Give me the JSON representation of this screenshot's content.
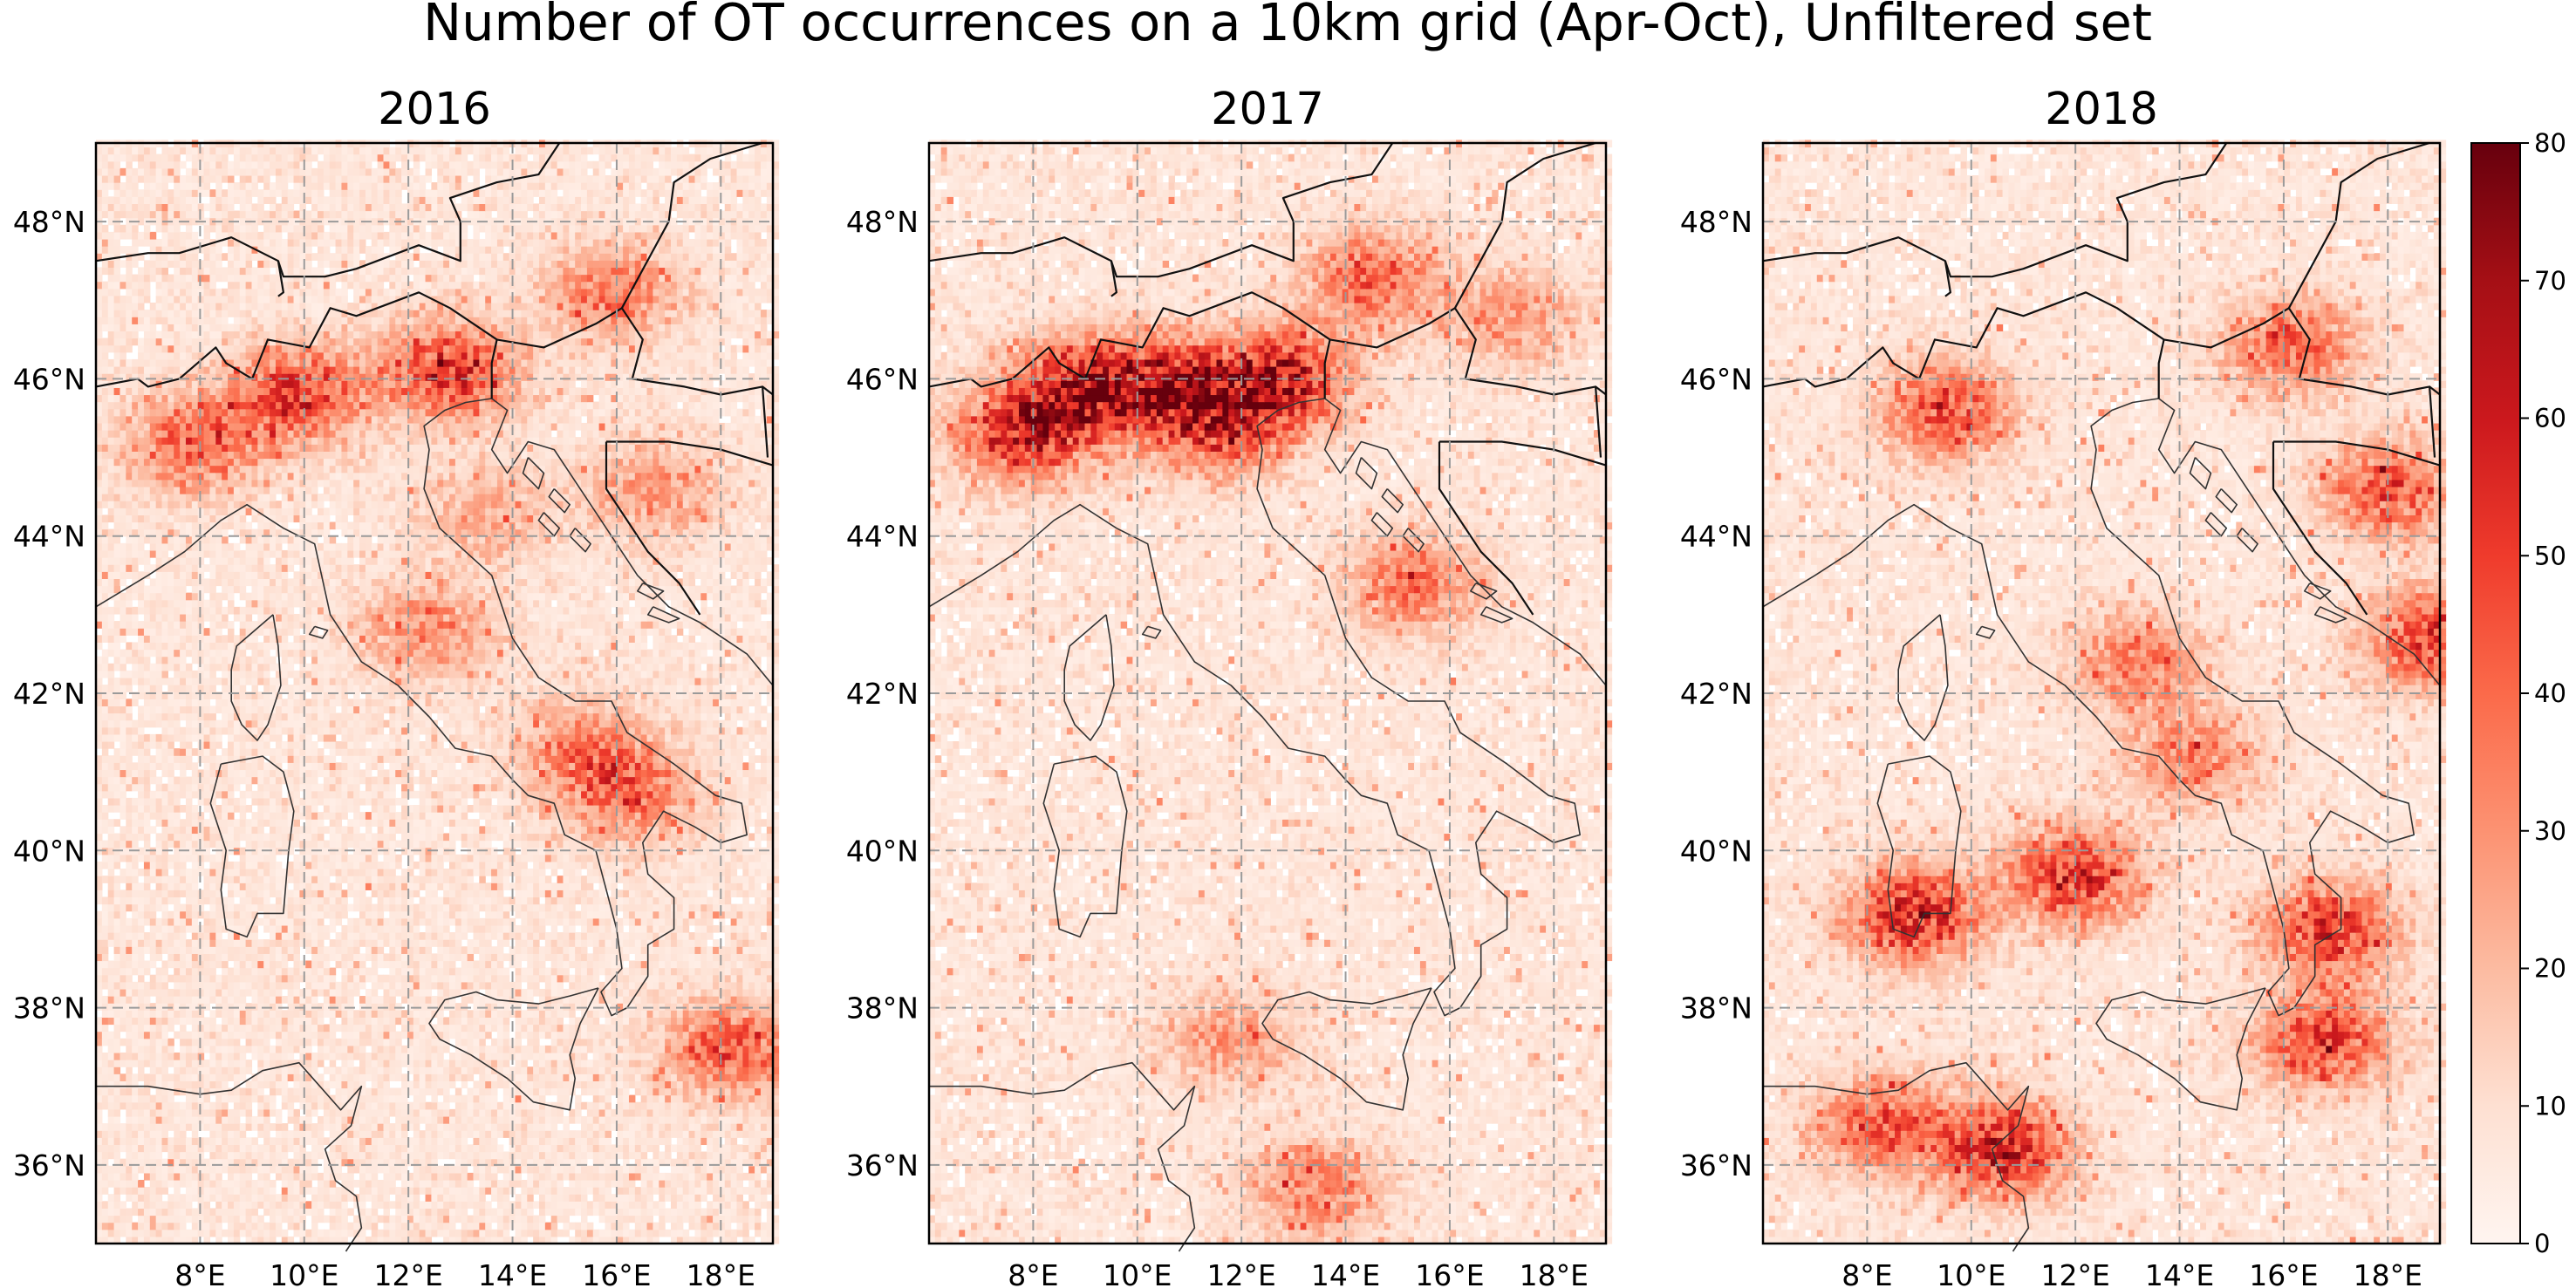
{
  "chart_data": {
    "type": "heatmap",
    "title": "Number of OT occurrences on a 10km grid (Apr-Oct), Unfiltered set",
    "panels": [
      {
        "title": "2016",
        "hotspots": [
          {
            "lon": 9.9,
            "lat": 45.8,
            "value": 60
          },
          {
            "lon": 7.9,
            "lat": 45.2,
            "value": 50
          },
          {
            "lon": 12.8,
            "lat": 46.1,
            "value": 65
          },
          {
            "lon": 15.9,
            "lat": 47.1,
            "value": 42
          },
          {
            "lon": 12.4,
            "lat": 42.8,
            "value": 35
          },
          {
            "lon": 15.4,
            "lat": 41.3,
            "value": 38
          },
          {
            "lon": 16.3,
            "lat": 40.7,
            "value": 40
          },
          {
            "lon": 18.2,
            "lat": 37.5,
            "value": 52
          },
          {
            "lon": 16.7,
            "lat": 44.6,
            "value": 32
          },
          {
            "lon": 13.5,
            "lat": 44.3,
            "value": 25
          }
        ]
      },
      {
        "title": "2017",
        "hotspots": [
          {
            "lon": 9.0,
            "lat": 45.9,
            "value": 78
          },
          {
            "lon": 10.8,
            "lat": 45.9,
            "value": 72
          },
          {
            "lon": 12.8,
            "lat": 46.0,
            "value": 74
          },
          {
            "lon": 7.8,
            "lat": 45.3,
            "value": 68
          },
          {
            "lon": 14.5,
            "lat": 47.3,
            "value": 50
          },
          {
            "lon": 11.6,
            "lat": 45.3,
            "value": 45
          },
          {
            "lon": 15.3,
            "lat": 43.4,
            "value": 42
          },
          {
            "lon": 13.4,
            "lat": 35.7,
            "value": 40
          },
          {
            "lon": 11.8,
            "lat": 37.6,
            "value": 30
          },
          {
            "lon": 17.2,
            "lat": 46.8,
            "value": 30
          }
        ]
      },
      {
        "title": "2018",
        "hotspots": [
          {
            "lon": 9.5,
            "lat": 45.6,
            "value": 55
          },
          {
            "lon": 8.9,
            "lat": 39.2,
            "value": 72
          },
          {
            "lon": 12.0,
            "lat": 39.7,
            "value": 65
          },
          {
            "lon": 10.6,
            "lat": 36.2,
            "value": 70
          },
          {
            "lon": 8.3,
            "lat": 36.5,
            "value": 52
          },
          {
            "lon": 16.9,
            "lat": 39.0,
            "value": 62
          },
          {
            "lon": 16.8,
            "lat": 37.6,
            "value": 60
          },
          {
            "lon": 18.8,
            "lat": 42.7,
            "value": 60
          },
          {
            "lon": 18.0,
            "lat": 44.6,
            "value": 52
          },
          {
            "lon": 13.2,
            "lat": 42.4,
            "value": 40
          },
          {
            "lon": 16.2,
            "lat": 46.4,
            "value": 48
          },
          {
            "lon": 14.3,
            "lat": 41.2,
            "value": 38
          }
        ]
      }
    ],
    "lon_ticks": [
      "8°E",
      "10°E",
      "12°E",
      "14°E",
      "16°E",
      "18°E"
    ],
    "lon_tick_values": [
      8,
      10,
      12,
      14,
      16,
      18
    ],
    "lat_ticks": [
      "36°N",
      "38°N",
      "40°N",
      "42°N",
      "44°N",
      "46°N",
      "48°N"
    ],
    "lat_tick_values": [
      36,
      38,
      40,
      42,
      44,
      46,
      48
    ],
    "xlim": [
      6,
      19
    ],
    "ylim": [
      35,
      49
    ],
    "grid": true,
    "colorbar": {
      "colormap": "Reds",
      "vmin": 0,
      "vmax": 80,
      "ticks": [
        "0",
        "10",
        "20",
        "30",
        "40",
        "50",
        "60",
        "70",
        "80"
      ],
      "tick_values": [
        0,
        10,
        20,
        30,
        40,
        50,
        60,
        70,
        80
      ]
    },
    "colors": {
      "low": "#fff5f0",
      "high": "#67000d",
      "grid": "#9a9a9a",
      "coastline": "#333333",
      "border": "#111111"
    }
  }
}
